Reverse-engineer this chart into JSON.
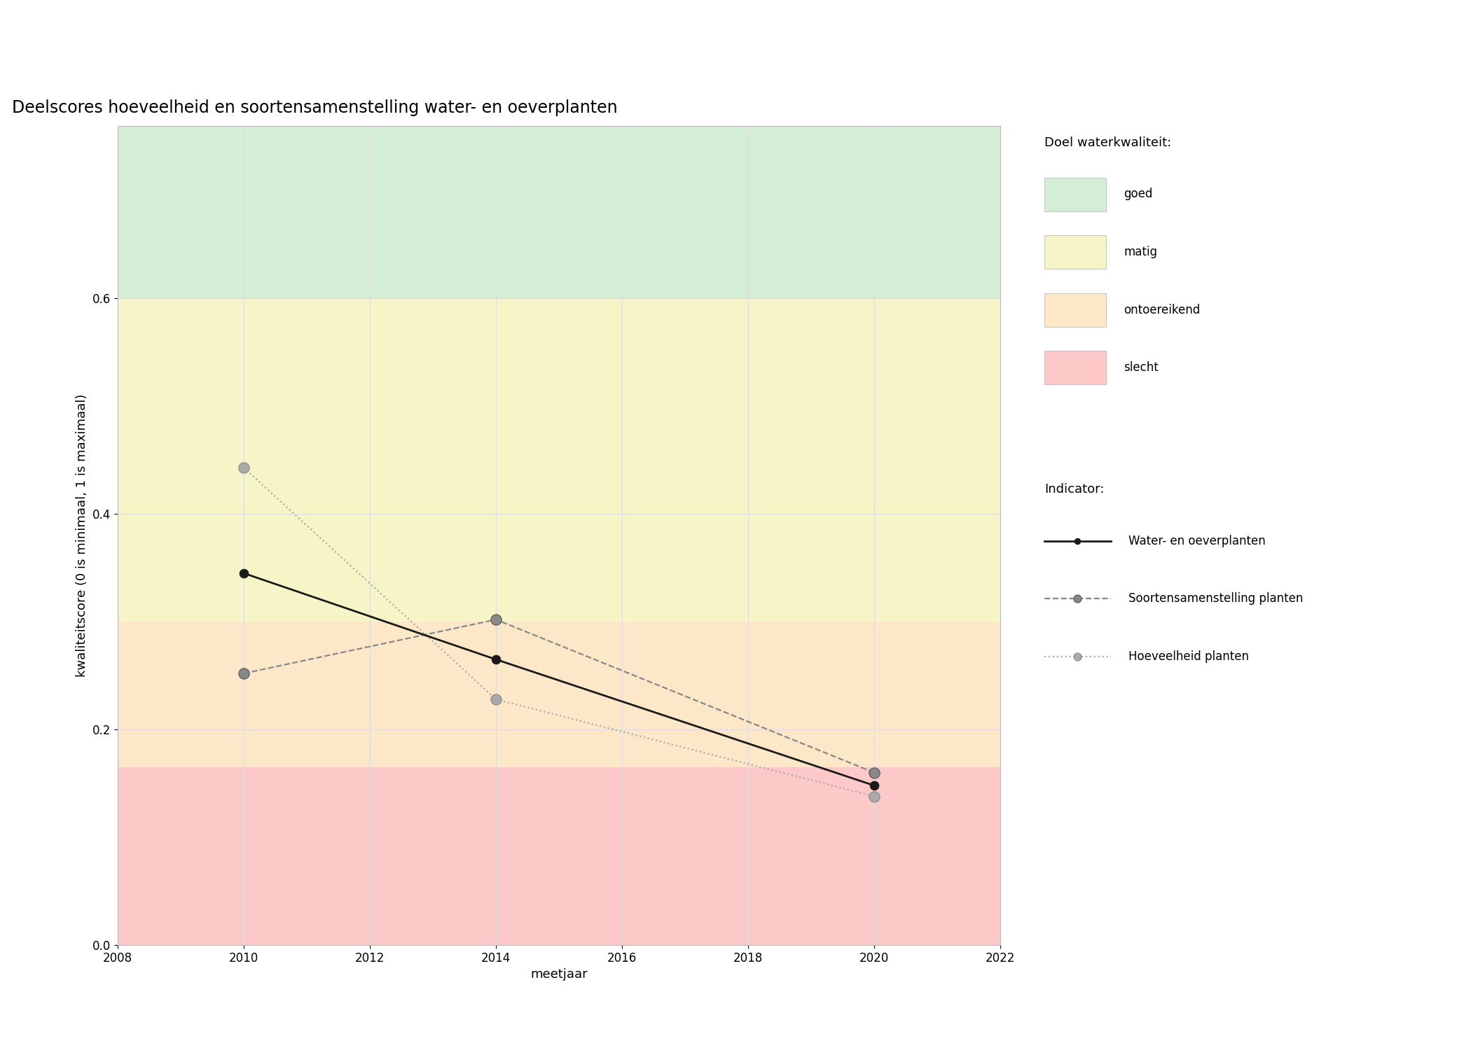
{
  "title": "Deelscores hoeveelheid en soortensamenstelling water- en oeverplanten",
  "xlabel": "meetjaar",
  "ylabel": "kwaliteitscore (0 is minimaal, 1 is maximaal)",
  "xlim": [
    2008,
    2022
  ],
  "ylim": [
    0.0,
    0.76
  ],
  "yticks": [
    0.0,
    0.2,
    0.4,
    0.6
  ],
  "xticks": [
    2008,
    2010,
    2012,
    2014,
    2016,
    2018,
    2020,
    2022
  ],
  "bg_colors": {
    "goed": "#d5ecd5",
    "matig": "#f5f5c8",
    "ontoereikend": "#fce8c8",
    "slecht": "#fcc8c8"
  },
  "bg_ranges": {
    "goed": [
      0.6,
      0.76
    ],
    "matig": [
      0.3,
      0.6
    ],
    "ontoereikend": [
      0.165,
      0.3
    ],
    "slecht": [
      0.0,
      0.165
    ]
  },
  "line_water_oever": {
    "x": [
      2010,
      2014,
      2020
    ],
    "y": [
      0.345,
      0.265,
      0.148
    ],
    "color": "#1a1a1a",
    "linestyle": "solid",
    "linewidth": 2.0,
    "marker": "o",
    "markersize": 9,
    "markerfacecolor": "#1a1a1a",
    "markeredgecolor": "#1a1a1a",
    "label": "Water- en oeverplanten"
  },
  "line_soorten": {
    "x": [
      2010,
      2014,
      2020
    ],
    "y": [
      0.252,
      0.302,
      0.16
    ],
    "color": "#888888",
    "linestyle": "dashed",
    "linewidth": 1.6,
    "marker": "o",
    "markersize": 11,
    "markerfacecolor": "#888888",
    "markeredgecolor": "#555555",
    "label": "Soortensamenstelling planten"
  },
  "line_hoeveelheid": {
    "x": [
      2010,
      2014,
      2020
    ],
    "y": [
      0.443,
      0.228,
      0.138
    ],
    "color": "#aaaaaa",
    "linestyle": "dotted",
    "linewidth": 1.6,
    "marker": "o",
    "markersize": 11,
    "markerfacecolor": "#aaaaaa",
    "markeredgecolor": "#888888",
    "label": "Hoeveelheid planten"
  },
  "legend_doel_title": "Doel waterkwaliteit:",
  "legend_indicator_title": "Indicator:",
  "legend_doel_items": [
    {
      "label": "goed",
      "color": "#d5ecd5"
    },
    {
      "label": "matig",
      "color": "#f5f5c8"
    },
    {
      "label": "ontoereikend",
      "color": "#fce8c8"
    },
    {
      "label": "slecht",
      "color": "#fcc8c8"
    }
  ],
  "title_fontsize": 17,
  "axis_label_fontsize": 13,
  "tick_fontsize": 12,
  "legend_fontsize": 12,
  "grid_color": "#dddddd"
}
